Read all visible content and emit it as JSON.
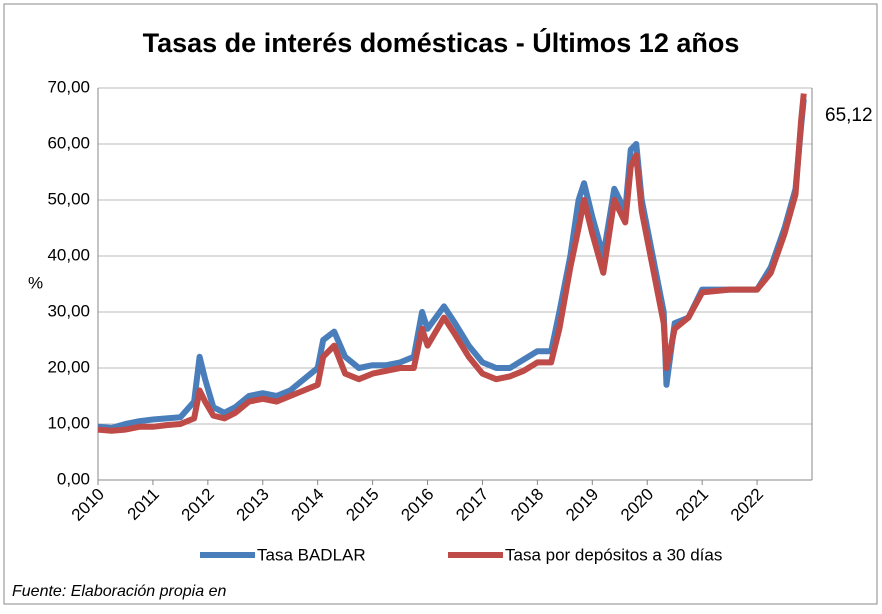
{
  "chart_data": {
    "type": "line",
    "title": "Tasas de interés domésticas - Últimos 12 años",
    "y_label": "%",
    "annotation": "65,12",
    "source": "Fuente: Elaboración propia en",
    "xlim": [
      2010,
      2023
    ],
    "xticks": [
      2010,
      2011,
      2012,
      2013,
      2014,
      2015,
      2016,
      2017,
      2018,
      2019,
      2020,
      2021,
      2022
    ],
    "ylim": [
      0,
      70
    ],
    "yticks": [
      {
        "value": 0,
        "label": "0,00"
      },
      {
        "value": 10,
        "label": "10,00"
      },
      {
        "value": 20,
        "label": "20,00"
      },
      {
        "value": 30,
        "label": "30,00"
      },
      {
        "value": 40,
        "label": "40,00"
      },
      {
        "value": 50,
        "label": "50,00"
      },
      {
        "value": 60,
        "label": "60,00"
      },
      {
        "value": 70,
        "label": "70,00"
      }
    ],
    "grid": true,
    "legend": "bottom",
    "x": [
      2010.0,
      2010.25,
      2010.5,
      2010.75,
      2011.0,
      2011.25,
      2011.5,
      2011.75,
      2011.85,
      2011.95,
      2012.1,
      2012.3,
      2012.5,
      2012.75,
      2013.0,
      2013.25,
      2013.5,
      2013.75,
      2014.0,
      2014.1,
      2014.3,
      2014.5,
      2014.75,
      2015.0,
      2015.25,
      2015.5,
      2015.75,
      2015.9,
      2016.0,
      2016.3,
      2016.5,
      2016.75,
      2017.0,
      2017.25,
      2017.5,
      2017.75,
      2018.0,
      2018.25,
      2018.4,
      2018.6,
      2018.75,
      2018.85,
      2019.0,
      2019.2,
      2019.4,
      2019.6,
      2019.7,
      2019.8,
      2019.9,
      2020.1,
      2020.3,
      2020.35,
      2020.5,
      2020.75,
      2021.0,
      2021.5,
      2022.0,
      2022.25,
      2022.5,
      2022.7,
      2022.8,
      2022.85
    ],
    "series": [
      {
        "name": "Tasa BADLAR",
        "color": "#4a7ebb",
        "values": [
          9.5,
          9.3,
          10,
          10.5,
          10.8,
          11,
          11.2,
          14,
          22,
          18,
          13,
          12,
          13,
          15,
          15.5,
          15,
          16,
          18,
          20,
          25,
          26.5,
          22,
          20,
          20.5,
          20.5,
          21,
          22,
          30,
          27,
          31,
          28,
          24,
          21,
          20,
          20,
          21.5,
          23,
          23,
          30,
          40,
          50,
          53,
          47,
          40,
          52,
          48,
          59,
          60,
          50,
          40,
          30,
          17,
          28,
          29,
          34,
          34,
          34,
          38,
          45,
          52,
          63,
          68
        ]
      },
      {
        "name": "Tasa por depósitos a 30 días",
        "color": "#be4b48",
        "values": [
          9,
          8.8,
          9,
          9.5,
          9.5,
          9.8,
          10,
          11,
          16,
          14,
          11.5,
          11,
          12,
          14,
          14.5,
          14,
          15,
          16,
          17,
          22,
          24,
          19,
          18,
          19,
          19.5,
          20,
          20,
          27,
          24,
          29,
          26,
          22,
          19,
          18,
          18.5,
          19.5,
          21,
          21,
          27,
          38,
          45,
          50,
          44,
          37,
          50,
          46,
          56,
          58,
          48,
          38,
          28,
          20,
          27,
          29,
          33.5,
          34,
          34,
          37,
          44,
          51,
          64,
          69
        ]
      }
    ]
  }
}
